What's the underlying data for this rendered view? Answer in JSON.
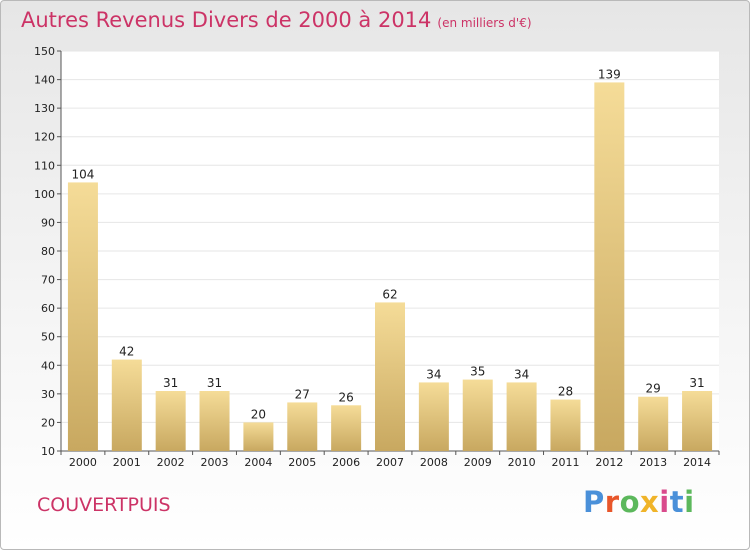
{
  "page": {
    "title": "Autres Revenus Divers de 2000 à 2014",
    "subtitle": "(en milliers d'€)",
    "commune": "COUVERTPUIS",
    "logo_text": "Proxiti",
    "colors": {
      "title": "#cc3366",
      "bar_top": "#f5dc98",
      "bar_bottom": "#c8a860",
      "grid": "#e6e6e6",
      "logo": [
        "#4a90d9",
        "#e8562a",
        "#5cb85c",
        "#f0b429",
        "#d94a8c",
        "#4a90d9",
        "#5cb85c"
      ]
    }
  },
  "chart_data": {
    "type": "bar",
    "title": "Autres Revenus Divers de 2000 à 2014",
    "subtitle": "(en milliers d'€)",
    "categories": [
      "2000",
      "2001",
      "2002",
      "2003",
      "2004",
      "2005",
      "2006",
      "2007",
      "2008",
      "2009",
      "2010",
      "2011",
      "2012",
      "2013",
      "2014"
    ],
    "values": [
      104,
      42,
      31,
      31,
      20,
      27,
      26,
      62,
      34,
      35,
      34,
      28,
      139,
      29,
      31
    ],
    "ylim": [
      10,
      150
    ],
    "yticks": [
      10,
      20,
      30,
      40,
      50,
      60,
      70,
      80,
      90,
      100,
      110,
      120,
      130,
      140,
      150
    ],
    "xlabel": "",
    "ylabel": "",
    "grid": true,
    "data_labels": true
  }
}
